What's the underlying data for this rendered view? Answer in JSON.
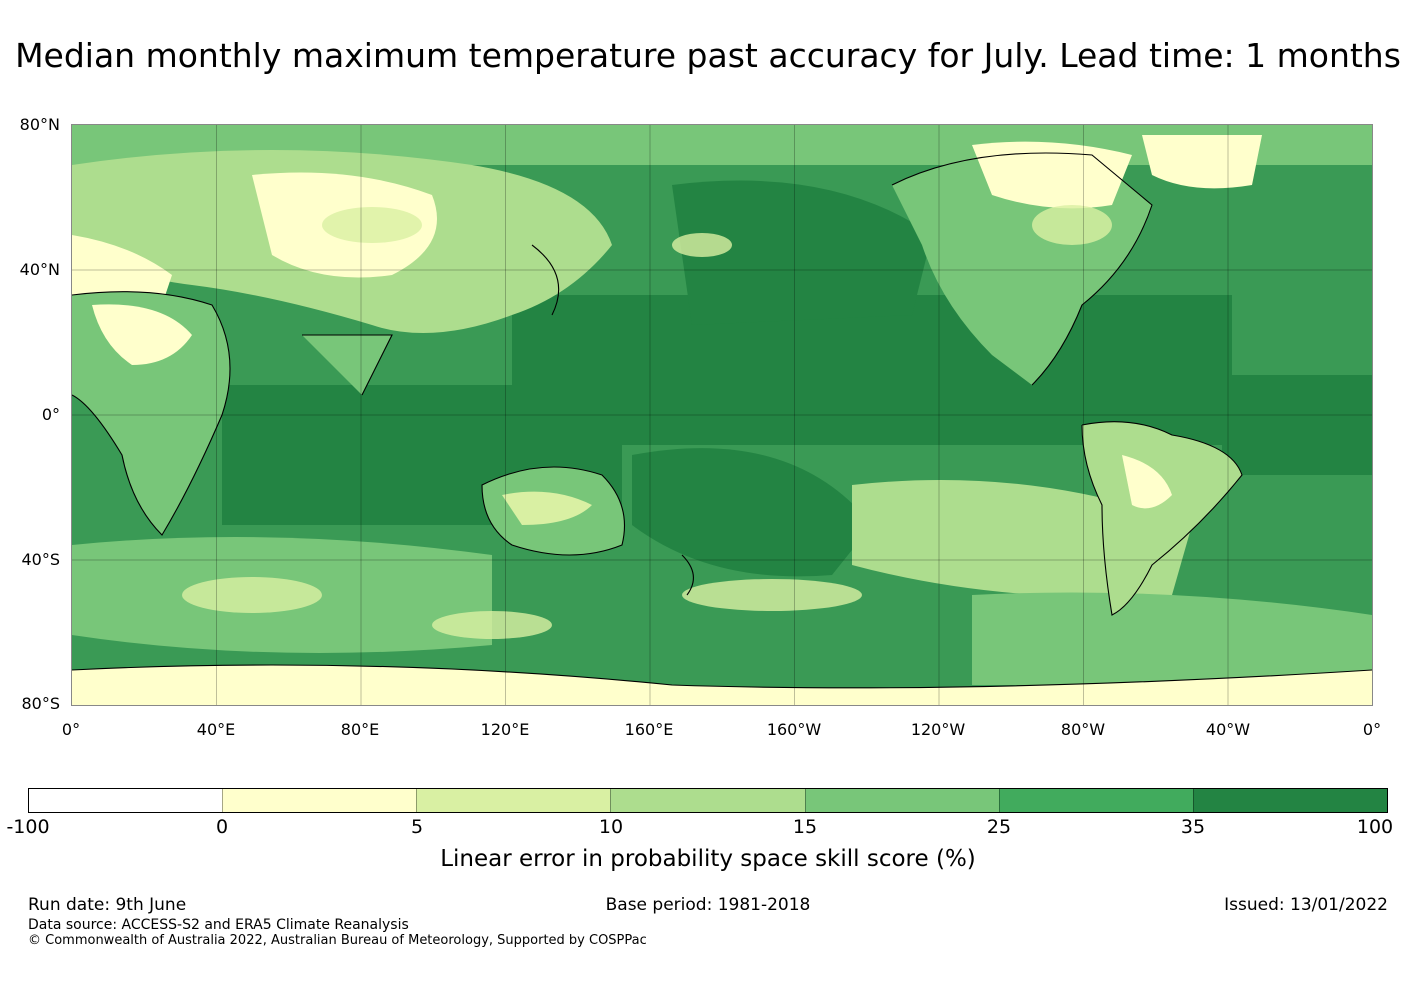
{
  "title": "Median monthly maximum temperature past accuracy for July. Lead time: 1 months",
  "map": {
    "lat_labels": [
      "80°N",
      "40°N",
      "0°",
      "40°S",
      "80°S"
    ],
    "lon_labels": [
      "0°",
      "40°E",
      "80°E",
      "120°E",
      "160°E",
      "160°W",
      "120°W",
      "80°W",
      "40°W",
      "0°"
    ],
    "grid": true
  },
  "colorbar": {
    "ticks": [
      "-100",
      "0",
      "5",
      "10",
      "15",
      "25",
      "35",
      "100"
    ],
    "colors": [
      "#ffffff",
      "#ffffcc",
      "#d9f0a3",
      "#addd8e",
      "#78c679",
      "#41ab5d",
      "#238443"
    ],
    "label": "Linear error in probability space skill score (%)"
  },
  "footer": {
    "run_date": "Run date: 9th June",
    "base_period": "Base period: 1981-2018",
    "issued": "Issued: 13/01/2022",
    "data_source": "Data source: ACCESS-S2 and ERA5 Climate Reanalysis",
    "copyright": "© Commonwealth of Australia 2022, Australian Bureau of Meteorology, Supported by COSPPac"
  }
}
